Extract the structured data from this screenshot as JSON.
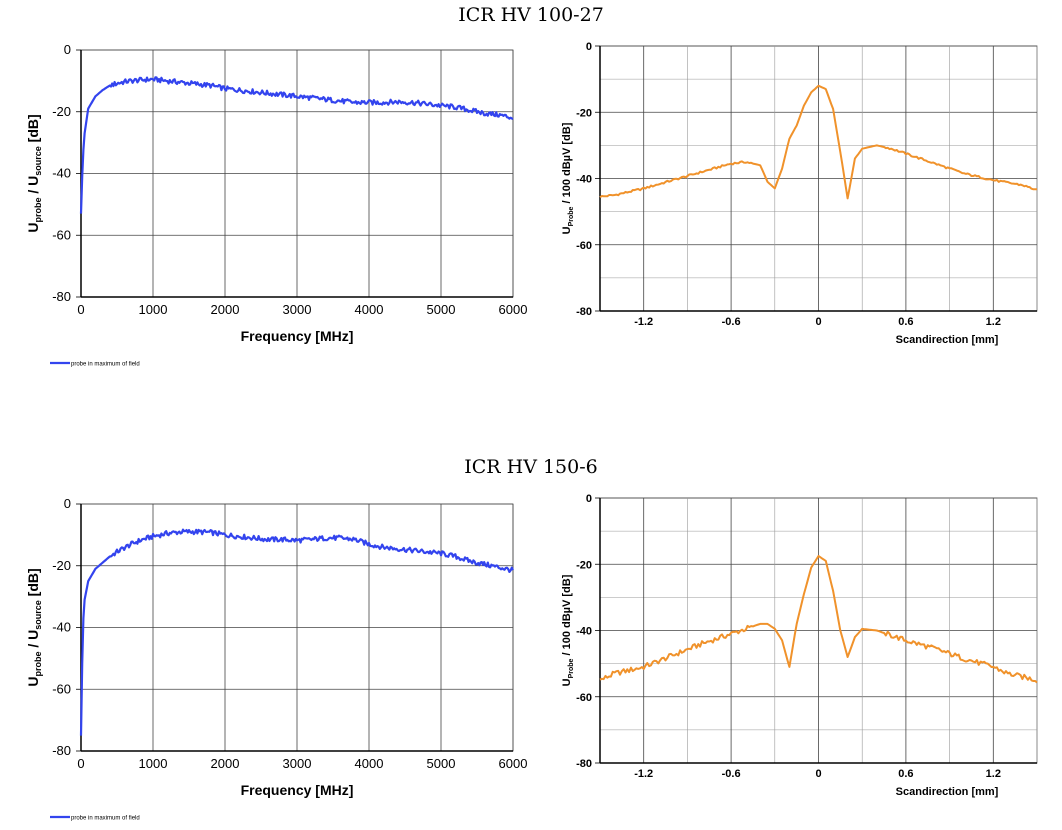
{
  "sections": [
    {
      "title": "ICR HV 100-27",
      "charts": [
        {
          "type": "line",
          "x": [
            0,
            25,
            50,
            100,
            200,
            300,
            400,
            500,
            600,
            700,
            800,
            900,
            1000,
            1200,
            1400,
            1600,
            1800,
            2000,
            2200,
            2400,
            2600,
            2800,
            3000,
            3200,
            3400,
            3600,
            3800,
            4000,
            4200,
            4400,
            4600,
            4800,
            5000,
            5200,
            5400,
            5600,
            5800,
            6000
          ],
          "series": [
            {
              "name": "probe in maximum of field",
              "color": "#3344ee",
              "values": [
                -53,
                -35,
                -27,
                -19,
                -15,
                -13,
                -11.5,
                -10.8,
                -10.3,
                -10,
                -9.8,
                -9.6,
                -9.5,
                -10,
                -10.5,
                -11,
                -11.5,
                -12.5,
                -13,
                -13.5,
                -14,
                -14.5,
                -15,
                -15.5,
                -16,
                -16.5,
                -17,
                -17,
                -17,
                -16.8,
                -17,
                -17.5,
                -18,
                -18.5,
                -19.5,
                -20.5,
                -21,
                -22
              ]
            }
          ],
          "xlim": [
            0,
            6000
          ],
          "ylim": [
            -80,
            0
          ],
          "xticks": [
            "0",
            "1000",
            "2000",
            "3000",
            "4000",
            "5000",
            "6000"
          ],
          "yticks": [
            "0",
            "-20",
            "-40",
            "-60",
            "-80"
          ],
          "xlabel": "Frequency [MHz]",
          "ylabel_main": "U",
          "ylabel_sub1": "probe",
          "ylabel_mid": " / U",
          "ylabel_sub2": "source",
          "ylabel_end": " [dB]",
          "legend": "probe in maximum of field",
          "grid": true
        },
        {
          "type": "line",
          "x": [
            -1.5,
            -1.4,
            -1.2,
            -1.0,
            -0.8,
            -0.6,
            -0.5,
            -0.4,
            -0.35,
            -0.3,
            -0.25,
            -0.2,
            -0.15,
            -0.1,
            -0.05,
            0,
            0.05,
            0.1,
            0.15,
            0.2,
            0.25,
            0.3,
            0.4,
            0.5,
            0.6,
            0.8,
            1.0,
            1.2,
            1.4,
            1.5
          ],
          "series": [
            {
              "name": "",
              "color": "#f0922b",
              "values": [
                -45.5,
                -45,
                -43,
                -40.5,
                -38,
                -35.5,
                -35,
                -36,
                -41,
                -43,
                -37,
                -28,
                -24,
                -18,
                -14,
                -12,
                -13,
                -19,
                -32,
                -46,
                -34,
                -31,
                -30,
                -31,
                -32.5,
                -35.5,
                -38.5,
                -40.5,
                -42,
                -43.5
              ]
            }
          ],
          "xlim": [
            -1.5,
            1.5
          ],
          "ylim": [
            -80,
            0
          ],
          "xticks": [
            "-1.2",
            "-0.6",
            "0",
            "0.6",
            "1.2"
          ],
          "yticks": [
            "0",
            "-20",
            "-40",
            "-60",
            "-80"
          ],
          "xlabel": "Scandirection [mm]",
          "ylabel_main": "U",
          "ylabel_sub1": "Probe",
          "ylabel_mid": " / 100 dBµV [dB]",
          "grid": true
        }
      ]
    },
    {
      "title": "ICR HV 150-6",
      "charts": [
        {
          "type": "line",
          "x": [
            0,
            25,
            50,
            100,
            200,
            300,
            400,
            500,
            600,
            700,
            800,
            900,
            1000,
            1200,
            1400,
            1600,
            1800,
            2000,
            2200,
            2400,
            2600,
            2800,
            3000,
            3200,
            3400,
            3600,
            3800,
            4000,
            4200,
            4400,
            4600,
            4800,
            5000,
            5200,
            5400,
            5600,
            5800,
            6000
          ],
          "series": [
            {
              "name": "probe in maximum of field",
              "color": "#3344ee",
              "values": [
                -75,
                -40,
                -31,
                -25,
                -21,
                -19,
                -17,
                -15.5,
                -14.2,
                -13,
                -12,
                -11.2,
                -10.5,
                -9.5,
                -9,
                -9,
                -9.2,
                -10,
                -10.5,
                -11,
                -11.5,
                -11.5,
                -11.8,
                -11.5,
                -11,
                -11,
                -11.5,
                -13,
                -14,
                -14.5,
                -15,
                -15.5,
                -16,
                -17,
                -18.5,
                -19.5,
                -20.5,
                -21.5
              ]
            }
          ],
          "xlim": [
            0,
            6000
          ],
          "ylim": [
            -80,
            0
          ],
          "xticks": [
            "0",
            "1000",
            "2000",
            "3000",
            "4000",
            "5000",
            "6000"
          ],
          "yticks": [
            "0",
            "-20",
            "-40",
            "-60",
            "-80"
          ],
          "xlabel": "Frequency [MHz]",
          "ylabel_main": "U",
          "ylabel_sub1": "probe",
          "ylabel_mid": " / U",
          "ylabel_sub2": "source",
          "ylabel_end": " [dB]",
          "legend": "probe in maximum of field",
          "grid": true
        },
        {
          "type": "line",
          "x": [
            -1.5,
            -1.4,
            -1.2,
            -1.0,
            -0.8,
            -0.6,
            -0.5,
            -0.4,
            -0.35,
            -0.3,
            -0.25,
            -0.2,
            -0.15,
            -0.1,
            -0.05,
            0,
            0.05,
            0.1,
            0.15,
            0.2,
            0.25,
            0.3,
            0.4,
            0.5,
            0.6,
            0.8,
            1.0,
            1.2,
            1.3,
            1.4,
            1.5
          ],
          "series": [
            {
              "name": "",
              "color": "#f0922b",
              "values": [
                -55,
                -53,
                -51,
                -47.5,
                -44,
                -41,
                -39.5,
                -38,
                -38,
                -39.5,
                -43,
                -51,
                -38,
                -29,
                -21,
                -17.5,
                -19,
                -28,
                -40,
                -48,
                -42,
                -39.5,
                -40,
                -41.5,
                -43,
                -45.5,
                -48.5,
                -51,
                -53,
                -54,
                -55
              ]
            }
          ],
          "xlim": [
            -1.5,
            1.5
          ],
          "ylim": [
            -80,
            0
          ],
          "xticks": [
            "-1.2",
            "-0.6",
            "0",
            "0.6",
            "1.2"
          ],
          "yticks": [
            "0",
            "-20",
            "-40",
            "-60",
            "-80"
          ],
          "xlabel": "Scandirection [mm]",
          "ylabel_main": "U",
          "ylabel_sub1": "Probe",
          "ylabel_mid": " / 100 dBµV [dB]",
          "grid": true
        }
      ]
    }
  ]
}
